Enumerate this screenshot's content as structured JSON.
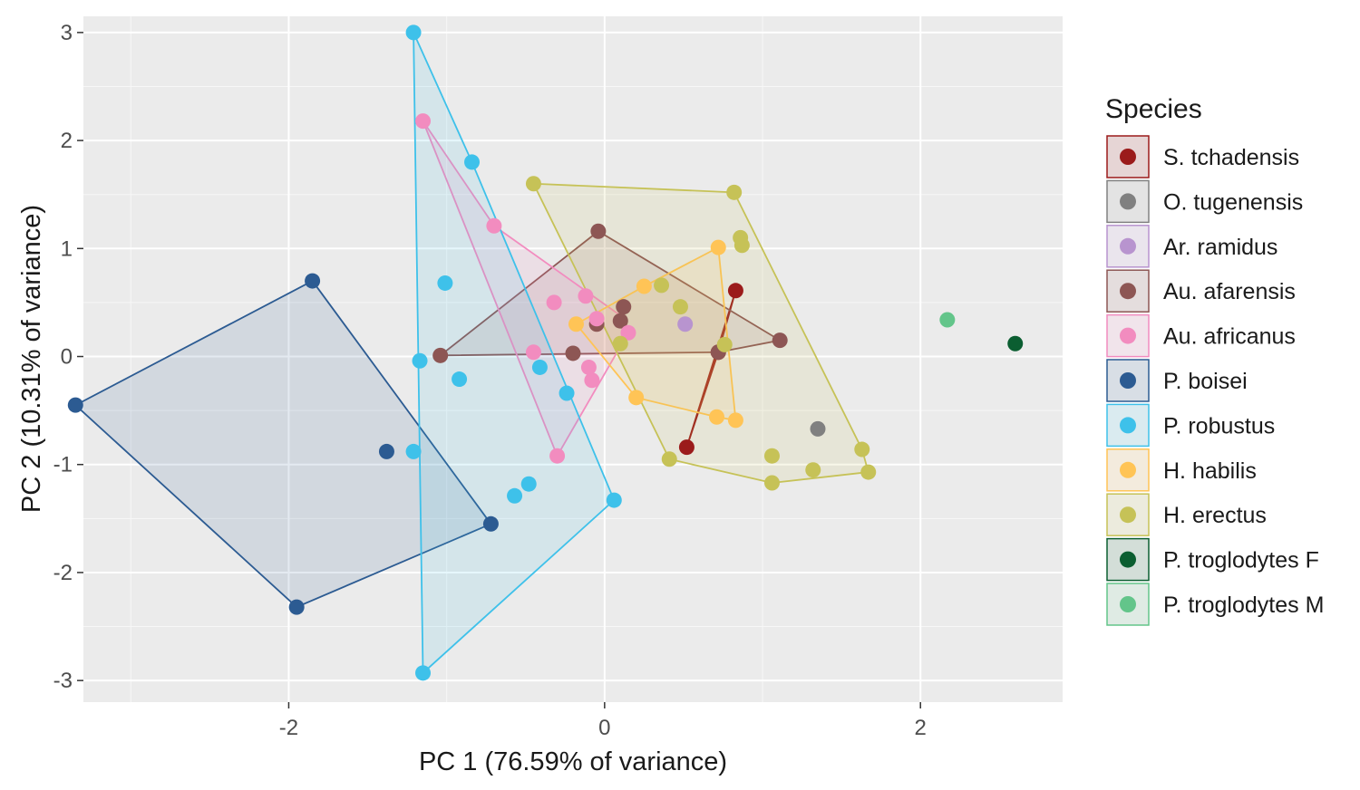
{
  "chart_data": {
    "type": "scatter",
    "title": "",
    "xlabel": "PC 1 (76.59% of variance)",
    "ylabel": "PC 2 (10.31% of variance)",
    "xlim": [
      -3.3,
      2.9
    ],
    "ylim": [
      -3.2,
      3.15
    ],
    "xticks": [
      -2,
      0,
      2
    ],
    "yticks": [
      -3,
      -2,
      -1,
      0,
      1,
      2,
      3
    ],
    "grid": true,
    "legend": {
      "title": "Species",
      "position": "right"
    },
    "series": [
      {
        "name": "S. tchadensis",
        "color": "#9b1b1b",
        "points": [
          [
            0.83,
            0.61
          ],
          [
            0.52,
            -0.84
          ],
          [
            0.72,
            0.04
          ]
        ],
        "hull": [
          [
            0.83,
            0.61
          ],
          [
            0.52,
            -0.84
          ],
          [
            0.72,
            0.04
          ]
        ]
      },
      {
        "name": "O. tugenensis",
        "color": "#808080",
        "points": [
          [
            1.35,
            -0.67
          ]
        ],
        "hull": []
      },
      {
        "name": "Ar. ramidus",
        "color": "#b894cf",
        "points": [
          [
            0.51,
            0.3
          ]
        ],
        "hull": []
      },
      {
        "name": "Au. afarensis",
        "color": "#8d5654",
        "points": [
          [
            -1.04,
            0.01
          ],
          [
            -0.04,
            1.16
          ],
          [
            1.11,
            0.15
          ],
          [
            -0.2,
            0.03
          ],
          [
            0.12,
            0.46
          ],
          [
            0.1,
            0.33
          ],
          [
            -0.05,
            0.3
          ],
          [
            0.72,
            0.04
          ]
        ],
        "hull": [
          [
            -1.04,
            0.01
          ],
          [
            -0.04,
            1.16
          ],
          [
            1.11,
            0.15
          ],
          [
            0.72,
            0.04
          ]
        ]
      },
      {
        "name": "Au. africanus",
        "color": "#f28cbf",
        "points": [
          [
            -1.15,
            2.18
          ],
          [
            -0.7,
            1.21
          ],
          [
            -0.32,
            0.5
          ],
          [
            -0.12,
            0.56
          ],
          [
            -0.05,
            0.35
          ],
          [
            -0.45,
            0.04
          ],
          [
            -0.1,
            -0.1
          ],
          [
            -0.08,
            -0.22
          ],
          [
            0.15,
            0.22
          ],
          [
            -0.3,
            -0.92
          ]
        ],
        "hull": [
          [
            -1.15,
            2.18
          ],
          [
            -0.7,
            1.21
          ],
          [
            0.1,
            0.38
          ],
          [
            0.15,
            0.22
          ],
          [
            -0.3,
            -0.92
          ]
        ]
      },
      {
        "name": "P. boisei",
        "color": "#2c5b92",
        "points": [
          [
            -1.85,
            0.7
          ],
          [
            -3.35,
            -0.45
          ],
          [
            -1.95,
            -2.32
          ],
          [
            -0.72,
            -1.55
          ],
          [
            -1.38,
            -0.88
          ]
        ],
        "hull": [
          [
            -1.85,
            0.7
          ],
          [
            -3.35,
            -0.45
          ],
          [
            -1.95,
            -2.32
          ],
          [
            -0.72,
            -1.55
          ]
        ]
      },
      {
        "name": "P. robustus",
        "color": "#3ec1ea",
        "points": [
          [
            -1.21,
            3.0
          ],
          [
            -0.84,
            1.8
          ],
          [
            -1.01,
            0.68
          ],
          [
            -1.17,
            -0.04
          ],
          [
            -0.92,
            -0.21
          ],
          [
            -0.41,
            -0.1
          ],
          [
            -0.24,
            -0.34
          ],
          [
            -1.21,
            -0.88
          ],
          [
            -0.57,
            -1.29
          ],
          [
            -0.48,
            -1.18
          ],
          [
            0.06,
            -1.33
          ],
          [
            -1.15,
            -2.93
          ]
        ],
        "hull": [
          [
            -1.21,
            3.0
          ],
          [
            -0.84,
            1.8
          ],
          [
            0.06,
            -1.33
          ],
          [
            -1.15,
            -2.93
          ]
        ]
      },
      {
        "name": "H. habilis",
        "color": "#ffc456",
        "points": [
          [
            0.72,
            1.01
          ],
          [
            0.25,
            0.65
          ],
          [
            -0.18,
            0.3
          ],
          [
            0.2,
            -0.38
          ],
          [
            0.71,
            -0.56
          ],
          [
            0.83,
            -0.59
          ]
        ],
        "hull": [
          [
            0.72,
            1.01
          ],
          [
            0.83,
            -0.59
          ],
          [
            0.71,
            -0.56
          ],
          [
            0.2,
            -0.38
          ],
          [
            -0.18,
            0.3
          ],
          [
            0.25,
            0.65
          ]
        ]
      },
      {
        "name": "H. erectus",
        "color": "#c6c257",
        "points": [
          [
            -0.45,
            1.6
          ],
          [
            0.82,
            1.52
          ],
          [
            0.86,
            1.1
          ],
          [
            0.87,
            1.03
          ],
          [
            0.36,
            0.66
          ],
          [
            0.48,
            0.46
          ],
          [
            0.1,
            0.12
          ],
          [
            0.76,
            0.11
          ],
          [
            0.41,
            -0.95
          ],
          [
            1.06,
            -0.92
          ],
          [
            1.06,
            -1.17
          ],
          [
            1.32,
            -1.05
          ],
          [
            1.63,
            -0.86
          ],
          [
            1.67,
            -1.07
          ]
        ],
        "hull": [
          [
            -0.45,
            1.6
          ],
          [
            0.82,
            1.52
          ],
          [
            1.63,
            -0.86
          ],
          [
            1.67,
            -1.07
          ],
          [
            1.06,
            -1.17
          ],
          [
            0.41,
            -0.95
          ]
        ]
      },
      {
        "name": "P. troglodytes F",
        "color": "#0b5e31",
        "points": [
          [
            2.6,
            0.12
          ]
        ],
        "hull": []
      },
      {
        "name": "P. troglodytes M",
        "color": "#63c58a",
        "points": [
          [
            2.17,
            0.34
          ]
        ],
        "hull": []
      }
    ]
  }
}
